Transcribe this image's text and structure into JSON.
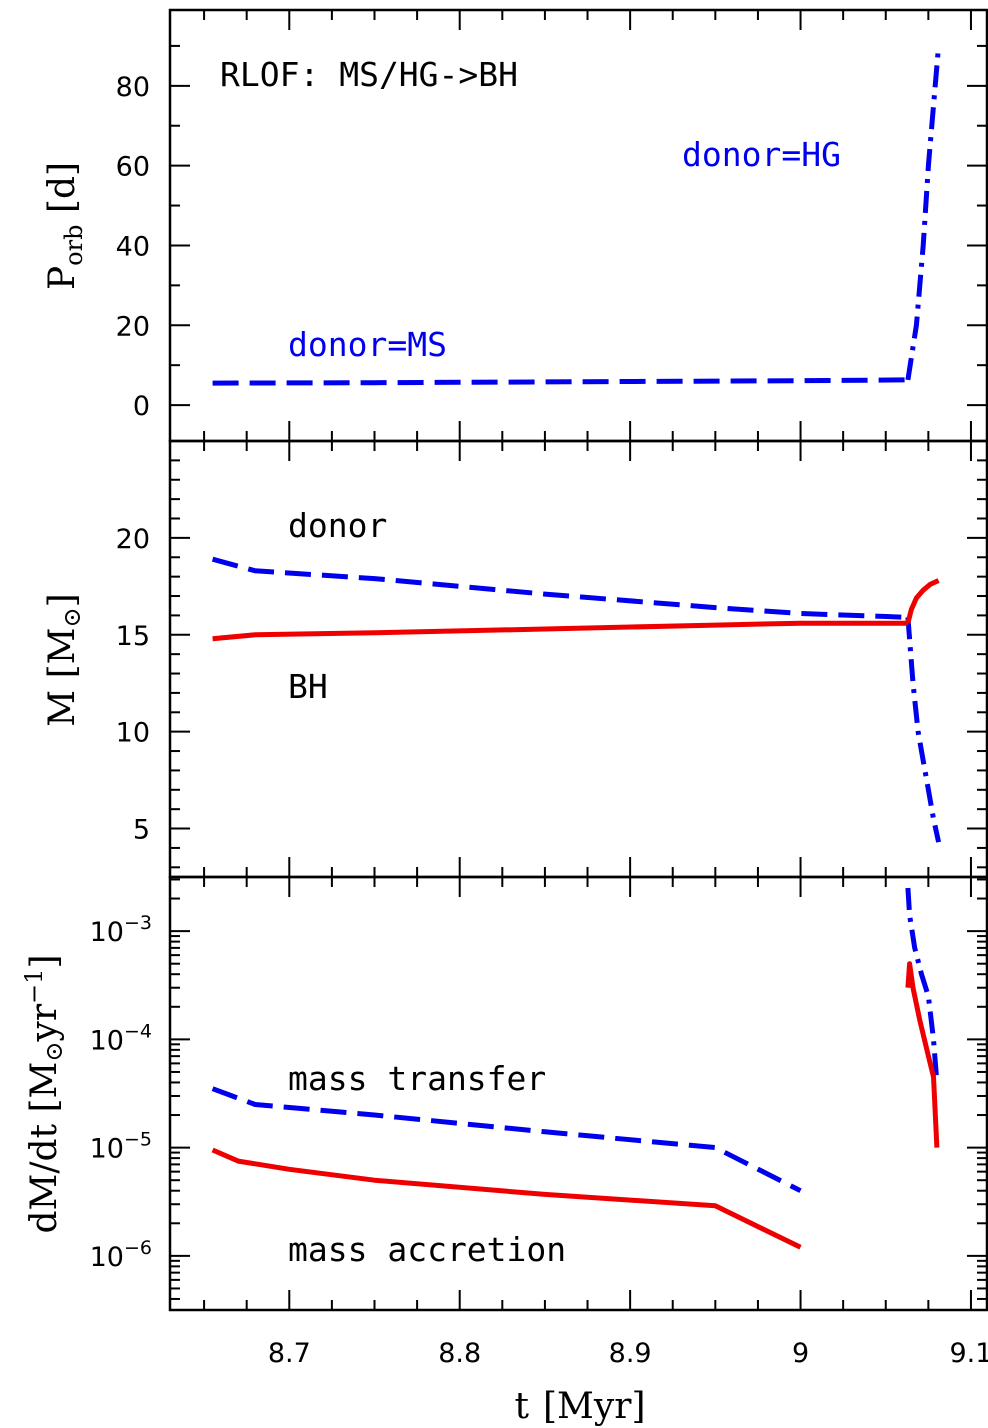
{
  "colors": {
    "donor": "#0000ee",
    "accretor": "#ee0000",
    "axis": "#000000"
  },
  "xaxis": {
    "label_main": "t",
    "label_unit": "[Myr]",
    "range": [
      8.63,
      9.11
    ],
    "ticks": [
      8.7,
      8.8,
      8.9,
      9.0,
      9.1
    ],
    "tick_labels": [
      "8.7",
      "8.8",
      "8.9",
      "9",
      "9.1"
    ],
    "minor_step": 0.025
  },
  "panels": {
    "porb": {
      "ylabel_base": "P",
      "ylabel_sub": "orb",
      "ylabel_unit": " [d]",
      "ylim": [
        -9,
        99
      ],
      "ticks": [
        0,
        20,
        40,
        60,
        80
      ],
      "tick_labels": [
        "0",
        "20",
        "40",
        "60",
        "80"
      ],
      "minor_step": 10,
      "title_annotation": "RLOF: MS/HG->BH",
      "label_ms": "donor=MS",
      "label_hg": "donor=HG"
    },
    "mass": {
      "ylabel_main": "M ",
      "ylabel_unit": "[M",
      "ylabel_sun": "⊙",
      "ylabel_close": "]",
      "ylim": [
        2.5,
        25.0
      ],
      "ticks": [
        5,
        10,
        15,
        20
      ],
      "tick_labels": [
        "5",
        "10",
        "15",
        "20"
      ],
      "minor_step": 1,
      "label_donor": "donor",
      "label_bh": "BH"
    },
    "mdot": {
      "ylabel_main": "dM/dt [M",
      "ylabel_sun": "⊙",
      "ylabel_unit": "yr",
      "ylabel_exp": "−1",
      "ylabel_close": "]",
      "ylim_log": [
        -6.5,
        -2.5
      ],
      "log_scale": true,
      "ticks": [
        -6,
        -5,
        -4,
        -3
      ],
      "tick_base": "10",
      "tick_exps": [
        "−6",
        "−5",
        "−4",
        "−3"
      ],
      "label_transfer": "mass transfer",
      "label_accretion": "mass accretion"
    }
  },
  "chart_data": [
    {
      "type": "line",
      "panel": "porb",
      "x_label": "t [Myr]",
      "y_label": "P_orb [d]",
      "series": [
        {
          "name": "donor=MS",
          "color": "#0000ee",
          "style": "dashed",
          "x": [
            8.655,
            8.75,
            8.85,
            8.95,
            9.0,
            9.063
          ],
          "y": [
            5.5,
            5.6,
            5.8,
            6.0,
            6.1,
            6.3
          ]
        },
        {
          "name": "donor=HG",
          "color": "#0000ee",
          "style": "dashdot",
          "x": [
            9.063,
            9.068,
            9.072,
            9.075,
            9.077,
            9.079,
            9.081
          ],
          "y": [
            6.3,
            20,
            40,
            60,
            70,
            80,
            90
          ]
        }
      ]
    },
    {
      "type": "line",
      "panel": "mass",
      "x_label": "t [Myr]",
      "y_label": "M [M⊙]",
      "series": [
        {
          "name": "donor",
          "color": "#0000ee",
          "style": "dashed",
          "x": [
            8.655,
            8.68,
            8.75,
            8.85,
            8.95,
            9.0,
            9.063
          ],
          "y": [
            18.9,
            18.3,
            17.9,
            17.1,
            16.4,
            16.1,
            15.9
          ]
        },
        {
          "name": "donor",
          "color": "#0000ee",
          "style": "dashdot",
          "x": [
            9.063,
            9.066,
            9.069,
            9.072,
            9.075,
            9.078,
            9.081
          ],
          "y": [
            15.9,
            12.5,
            10.0,
            8.5,
            7.0,
            5.5,
            4.3
          ]
        },
        {
          "name": "BH",
          "color": "#ee0000",
          "style": "solid",
          "x": [
            8.655,
            8.68,
            8.75,
            8.85,
            8.95,
            9.0,
            9.063
          ],
          "y": [
            14.8,
            15.0,
            15.1,
            15.3,
            15.5,
            15.6,
            15.6
          ]
        },
        {
          "name": "BH",
          "color": "#ee0000",
          "style": "solid",
          "x": [
            9.063,
            9.065,
            9.068,
            9.072,
            9.076,
            9.081
          ],
          "y": [
            15.6,
            16.3,
            16.9,
            17.3,
            17.6,
            17.8
          ]
        }
      ]
    },
    {
      "type": "line",
      "panel": "mdot",
      "x_label": "t [Myr]",
      "y_label": "dM/dt [M⊙ yr⁻¹]",
      "y_scale": "log",
      "series": [
        {
          "name": "mass transfer",
          "color": "#0000ee",
          "style": "dashed",
          "x": [
            8.655,
            8.68,
            8.75,
            8.85,
            8.95,
            9.0
          ],
          "y": [
            3.5e-05,
            2.5e-05,
            2e-05,
            1.4e-05,
            1e-05,
            4e-06
          ]
        },
        {
          "name": "mass transfer",
          "color": "#0000ee",
          "style": "dashdot",
          "x": [
            9.063,
            9.064,
            9.067,
            9.071,
            9.075,
            9.078,
            9.08
          ],
          "y": [
            0.0025,
            0.0014,
            0.0007,
            0.0004,
            0.00025,
            0.0001,
            4e-05
          ]
        },
        {
          "name": "mass accretion",
          "color": "#ee0000",
          "style": "solid",
          "x": [
            8.655,
            8.67,
            8.7,
            8.75,
            8.85,
            8.95,
            9.0
          ],
          "y": [
            9.5e-06,
            7.5e-06,
            6.3e-06,
            5e-06,
            3.7e-06,
            2.9e-06,
            1.2e-06
          ]
        },
        {
          "name": "mass accretion",
          "color": "#ee0000",
          "style": "solid",
          "x": [
            9.063,
            9.064,
            9.066,
            9.07,
            9.075,
            9.078,
            9.08
          ],
          "y": [
            0.0003,
            0.0005,
            0.0003,
            0.00015,
            7e-05,
            4.5e-05,
            1e-05
          ]
        }
      ]
    }
  ]
}
